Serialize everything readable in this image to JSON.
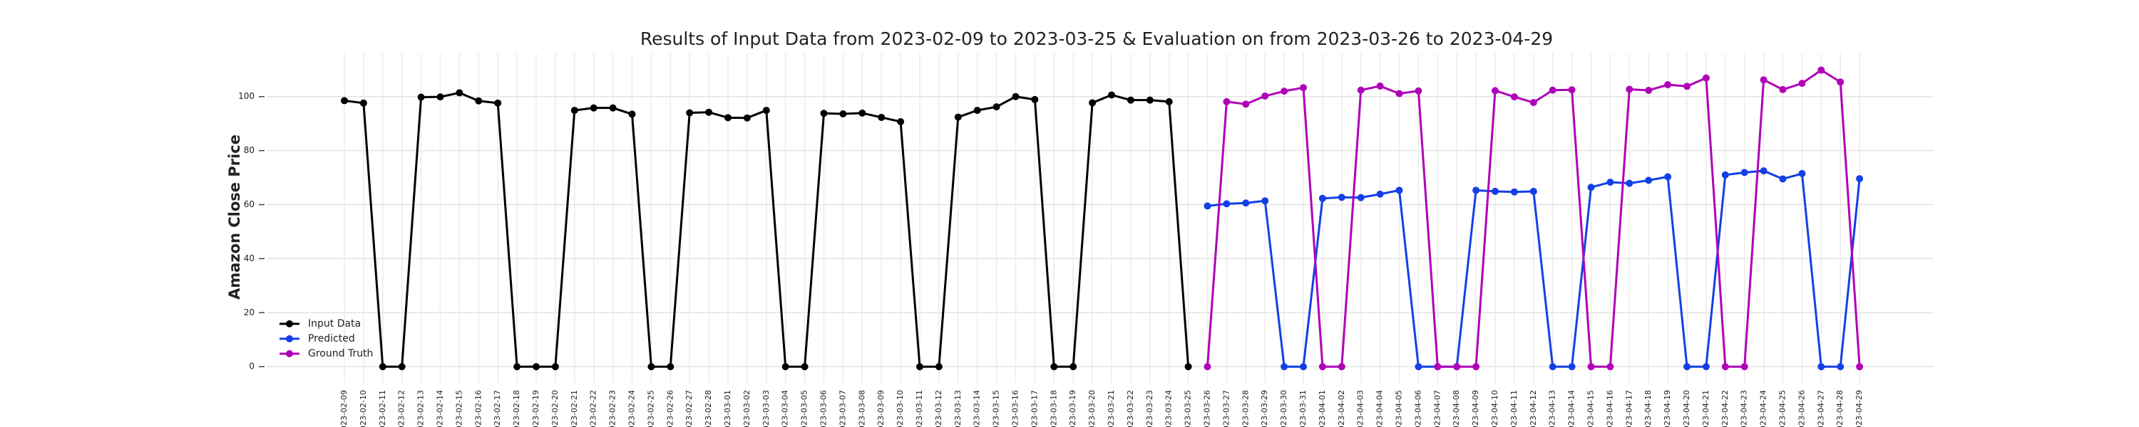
{
  "chart_data": {
    "type": "line",
    "title": "Results of Input Data from 2023-02-09 to 2023-03-25 & Evaluation on from 2023-03-26 to 2023-04-29",
    "y_label": "Amazon Close Price",
    "categories": [
      "2023-02-09",
      "2023-02-10",
      "2023-02-11",
      "2023-02-12",
      "2023-02-13",
      "2023-02-14",
      "2023-02-15",
      "2023-02-16",
      "2023-02-17",
      "2023-02-18",
      "2023-02-19",
      "2023-02-20",
      "2023-02-21",
      "2023-02-22",
      "2023-02-23",
      "2023-02-24",
      "2023-02-25",
      "2023-02-26",
      "2023-02-27",
      "2023-02-28",
      "2023-03-01",
      "2023-03-02",
      "2023-03-03",
      "2023-03-04",
      "2023-03-05",
      "2023-03-06",
      "2023-03-07",
      "2023-03-08",
      "2023-03-09",
      "2023-03-10",
      "2023-03-11",
      "2023-03-12",
      "2023-03-13",
      "2023-03-14",
      "2023-03-15",
      "2023-03-16",
      "2023-03-17",
      "2023-03-18",
      "2023-03-19",
      "2023-03-20",
      "2023-03-21",
      "2023-03-22",
      "2023-03-23",
      "2023-03-24",
      "2023-03-25",
      "2023-03-26",
      "2023-03-27",
      "2023-03-28",
      "2023-03-29",
      "2023-03-30",
      "2023-03-31",
      "2023-04-01",
      "2023-04-02",
      "2023-04-03",
      "2023-04-04",
      "2023-04-05",
      "2023-04-06",
      "2023-04-07",
      "2023-04-08",
      "2023-04-09",
      "2023-04-10",
      "2023-04-11",
      "2023-04-12",
      "2023-04-13",
      "2023-04-14",
      "2023-04-15",
      "2023-04-16",
      "2023-04-17",
      "2023-04-18",
      "2023-04-19",
      "2023-04-20",
      "2023-04-21",
      "2023-04-22",
      "2023-04-23",
      "2023-04-24",
      "2023-04-25",
      "2023-04-26",
      "2023-04-27",
      "2023-04-28",
      "2023-04-29"
    ],
    "series": [
      {
        "name": "Input Data",
        "color": "#000000",
        "values": [
          98.5,
          97.6,
          0,
          0,
          99.8,
          99.9,
          101.4,
          98.4,
          97.6,
          0,
          0,
          0,
          94.9,
          95.8,
          95.8,
          93.5,
          0,
          0,
          94.0,
          94.2,
          92.2,
          92.1,
          94.9,
          0,
          0,
          93.8,
          93.6,
          93.9,
          92.3,
          90.7,
          0,
          0,
          92.4,
          94.9,
          96.2,
          100.0,
          98.9,
          0,
          0,
          97.7,
          100.6,
          98.7,
          98.7,
          98.1,
          0,
          null,
          null,
          null,
          null,
          null,
          null,
          null,
          null,
          null,
          null,
          null,
          null,
          null,
          null,
          null,
          null,
          null,
          null,
          null,
          null,
          null,
          null,
          null,
          null,
          null,
          null,
          null,
          null,
          null,
          null,
          null,
          null,
          null,
          null,
          null
        ]
      },
      {
        "name": "Predicted",
        "color": "#1340e6",
        "values": [
          null,
          null,
          null,
          null,
          null,
          null,
          null,
          null,
          null,
          null,
          null,
          null,
          null,
          null,
          null,
          null,
          null,
          null,
          null,
          null,
          null,
          null,
          null,
          null,
          null,
          null,
          null,
          null,
          null,
          null,
          null,
          null,
          null,
          null,
          null,
          null,
          null,
          null,
          null,
          null,
          null,
          null,
          null,
          null,
          null,
          59.5,
          60.3,
          60.6,
          61.4,
          0,
          0,
          62.3,
          62.7,
          62.6,
          63.9,
          65.3,
          0,
          0,
          0,
          65.3,
          64.9,
          64.7,
          64.9,
          0,
          0,
          66.4,
          68.3,
          67.9,
          69.0,
          70.3,
          0,
          0,
          71.0,
          71.9,
          72.5,
          69.5,
          71.5,
          0,
          0,
          69.6
        ]
      },
      {
        "name": "Ground Truth",
        "color": "#b000b8",
        "values": [
          null,
          null,
          null,
          null,
          null,
          null,
          null,
          null,
          null,
          null,
          null,
          null,
          null,
          null,
          null,
          null,
          null,
          null,
          null,
          null,
          null,
          null,
          null,
          null,
          null,
          null,
          null,
          null,
          null,
          null,
          null,
          null,
          null,
          null,
          null,
          null,
          null,
          null,
          null,
          null,
          null,
          null,
          null,
          null,
          null,
          0,
          98.1,
          97.2,
          100.2,
          102.0,
          103.3,
          0,
          0,
          102.4,
          103.9,
          101.1,
          102.1,
          0,
          0,
          0,
          102.2,
          99.9,
          97.8,
          102.4,
          102.5,
          0,
          0,
          102.7,
          102.3,
          104.4,
          103.8,
          106.9,
          0,
          0,
          106.2,
          102.6,
          104.9,
          109.8,
          105.4,
          0
        ]
      }
    ],
    "ylim": [
      -6,
      116
    ],
    "yticks": [
      0,
      20,
      40,
      60,
      80,
      100
    ],
    "grid": true,
    "legend": "lower left"
  }
}
